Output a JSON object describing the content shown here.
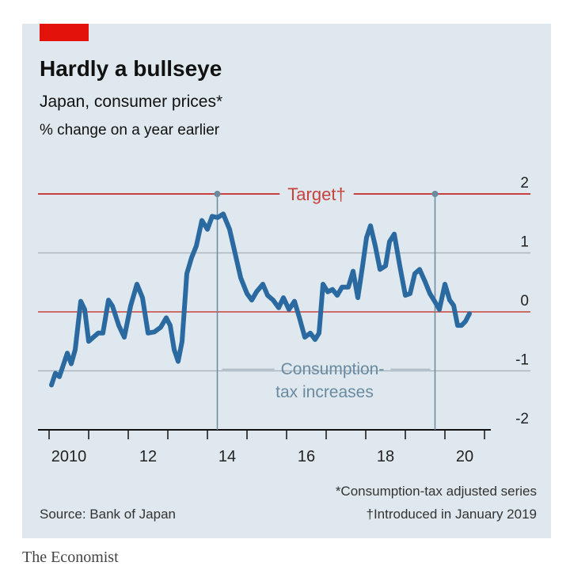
{
  "chart_data": {
    "type": "line",
    "title": "Hardly a bullseye",
    "subtitle": "Japan, consumer prices*",
    "unit": "% change on a year earlier",
    "x": [
      2010.06,
      2010.16,
      2010.26,
      2010.36,
      2010.46,
      2010.56,
      2010.66,
      2010.8,
      2010.9,
      2011.0,
      2011.12,
      2011.24,
      2011.36,
      2011.5,
      2011.6,
      2011.76,
      2011.9,
      2012.06,
      2012.22,
      2012.36,
      2012.5,
      2012.66,
      2012.82,
      2012.96,
      2013.06,
      2013.16,
      2013.26,
      2013.36,
      2013.48,
      2013.6,
      2013.72,
      2013.86,
      2014.0,
      2014.12,
      2014.26,
      2014.4,
      2014.56,
      2014.7,
      2014.84,
      2015.0,
      2015.12,
      2015.24,
      2015.4,
      2015.52,
      2015.66,
      2015.8,
      2015.92,
      2016.06,
      2016.2,
      2016.32,
      2016.46,
      2016.6,
      2016.72,
      2016.82,
      2016.92,
      2017.04,
      2017.16,
      2017.28,
      2017.4,
      2017.56,
      2017.68,
      2017.8,
      2017.92,
      2018.02,
      2018.12,
      2018.24,
      2018.36,
      2018.5,
      2018.6,
      2018.72,
      2018.86,
      2019.0,
      2019.12,
      2019.24,
      2019.36,
      2019.5,
      2019.62,
      2019.74,
      2019.86,
      2020.0,
      2020.12,
      2020.22,
      2020.32,
      2020.42,
      2020.52,
      2020.62
    ],
    "series": [
      {
        "name": "Consumer prices",
        "color": "#2b6aa0",
        "values": [
          -1.24,
          -1.04,
          -1.1,
          -0.9,
          -0.7,
          -0.88,
          -0.64,
          0.18,
          0.04,
          -0.5,
          -0.43,
          -0.36,
          -0.36,
          0.2,
          0.1,
          -0.23,
          -0.43,
          0.1,
          0.47,
          0.24,
          -0.36,
          -0.34,
          -0.26,
          -0.1,
          -0.23,
          -0.64,
          -0.84,
          -0.5,
          0.65,
          0.92,
          1.12,
          1.55,
          1.4,
          1.62,
          1.6,
          1.66,
          1.4,
          0.99,
          0.58,
          0.31,
          0.2,
          0.34,
          0.47,
          0.28,
          0.2,
          0.07,
          0.24,
          0.04,
          0.18,
          -0.09,
          -0.43,
          -0.36,
          -0.47,
          -0.36,
          0.47,
          0.34,
          0.38,
          0.28,
          0.42,
          0.42,
          0.69,
          0.24,
          0.78,
          1.26,
          1.46,
          1.12,
          0.72,
          0.78,
          1.19,
          1.32,
          0.78,
          0.28,
          0.31,
          0.65,
          0.72,
          0.51,
          0.31,
          0.18,
          0.04,
          0.47,
          0.2,
          0.11,
          -0.23,
          -0.23,
          -0.16,
          -0.03
        ]
      }
    ],
    "xlim": [
      2009.72,
      2022.16
    ],
    "xticks": [
      {
        "value": 2010,
        "label": "2010"
      },
      {
        "value": 2012,
        "label": "12"
      },
      {
        "value": 2014,
        "label": "14"
      },
      {
        "value": 2016,
        "label": "16"
      },
      {
        "value": 2018,
        "label": "18"
      },
      {
        "value": 2020,
        "label": "20"
      }
    ],
    "x_minor_ticks": [
      2011,
      2013,
      2015,
      2017,
      2019,
      2021
    ],
    "ylim": [
      -2,
      2
    ],
    "yticks": [
      -2,
      -1,
      0,
      1,
      2
    ],
    "target": {
      "value": 2,
      "label": "Target†",
      "color": "#c7423d"
    },
    "tax_increases": {
      "x": [
        2014.25,
        2019.75
      ],
      "label": [
        "Consumption-",
        "tax increases"
      ]
    },
    "footnotes": [
      "*Consumption-tax adjusted series",
      "†Introduced in January 2019"
    ],
    "source": "Source: Bank of Japan",
    "brand": "The Economist"
  }
}
